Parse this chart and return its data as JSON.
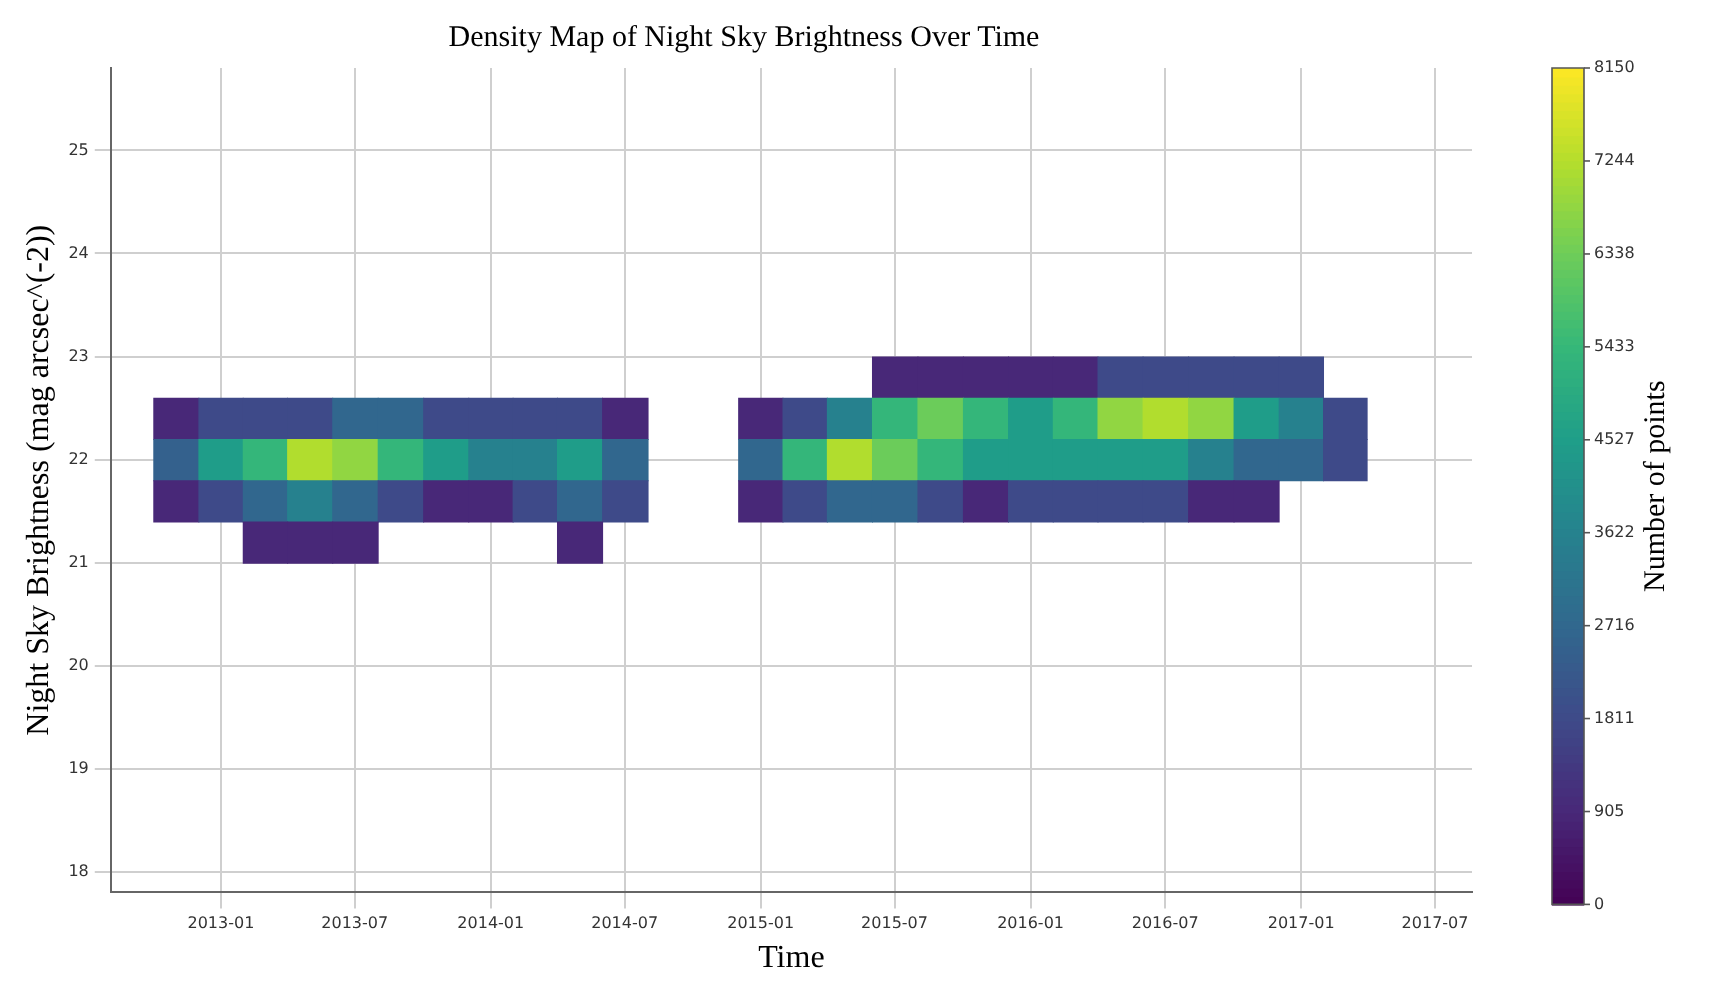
{
  "chart_data": {
    "type": "heatmap",
    "title": "Density Map of Night Sky Brightness Over Time",
    "xlabel": "Time",
    "ylabel": "Night Sky Brightness (mag arcsec^(-2))",
    "clabel": "Number of points",
    "x": [
      "2012-11",
      "2013-01",
      "2013-03",
      "2013-05",
      "2013-07",
      "2013-09",
      "2013-11",
      "2014-01",
      "2014-03",
      "2014-05",
      "2014-07",
      "2014-09",
      "2014-11",
      "2015-01",
      "2015-03",
      "2015-05",
      "2015-07",
      "2015-09",
      "2015-11",
      "2016-01",
      "2016-03",
      "2016-05",
      "2016-07",
      "2016-09",
      "2016-11",
      "2017-01",
      "2017-03"
    ],
    "y": [
      22.8,
      22.4,
      22.0,
      21.6,
      21.2
    ],
    "xlim": [
      "2012-08-05",
      "2017-08-20"
    ],
    "xticks": [
      "2013-01",
      "2013-07",
      "2014-01",
      "2014-07",
      "2015-01",
      "2015-07",
      "2016-01",
      "2016-07",
      "2017-01",
      "2017-07"
    ],
    "ylim": [
      17.8,
      25.8
    ],
    "yticks": [
      18,
      19,
      20,
      21,
      22,
      23,
      24,
      25
    ],
    "clim": [
      0,
      8150
    ],
    "cticks": [
      0,
      905,
      1811,
      2716,
      3622,
      4527,
      5433,
      6338,
      7244,
      8150
    ],
    "grid": true,
    "cells": [
      [
        null,
        null,
        null,
        null,
        null,
        null,
        null,
        null,
        null,
        null,
        null,
        null,
        null,
        null,
        null,
        null,
        900,
        900,
        900,
        900,
        900,
        1800,
        1800,
        1800,
        1800,
        1800,
        null
      ],
      [
        900,
        1800,
        1800,
        1800,
        2700,
        2700,
        1800,
        1800,
        1800,
        1800,
        900,
        null,
        null,
        900,
        1800,
        3600,
        5400,
        6300,
        5400,
        4500,
        5400,
        6800,
        7200,
        6800,
        4500,
        3600,
        1800
      ],
      [
        2500,
        4500,
        5400,
        7200,
        6800,
        5400,
        4500,
        3600,
        3600,
        4500,
        2700,
        null,
        null,
        2700,
        5400,
        7200,
        6300,
        5400,
        4500,
        4500,
        4500,
        4500,
        4500,
        3600,
        2700,
        2700,
        1800
      ],
      [
        900,
        1800,
        2700,
        3600,
        2700,
        1800,
        900,
        900,
        1800,
        2700,
        1800,
        null,
        null,
        900,
        1800,
        2700,
        2700,
        1800,
        900,
        1800,
        1800,
        1800,
        1800,
        900,
        900,
        null,
        null
      ],
      [
        null,
        null,
        900,
        900,
        900,
        null,
        null,
        null,
        null,
        900,
        null,
        null,
        null,
        null,
        null,
        null,
        null,
        null,
        null,
        null,
        null,
        null,
        null,
        null,
        null,
        null,
        null
      ]
    ]
  }
}
